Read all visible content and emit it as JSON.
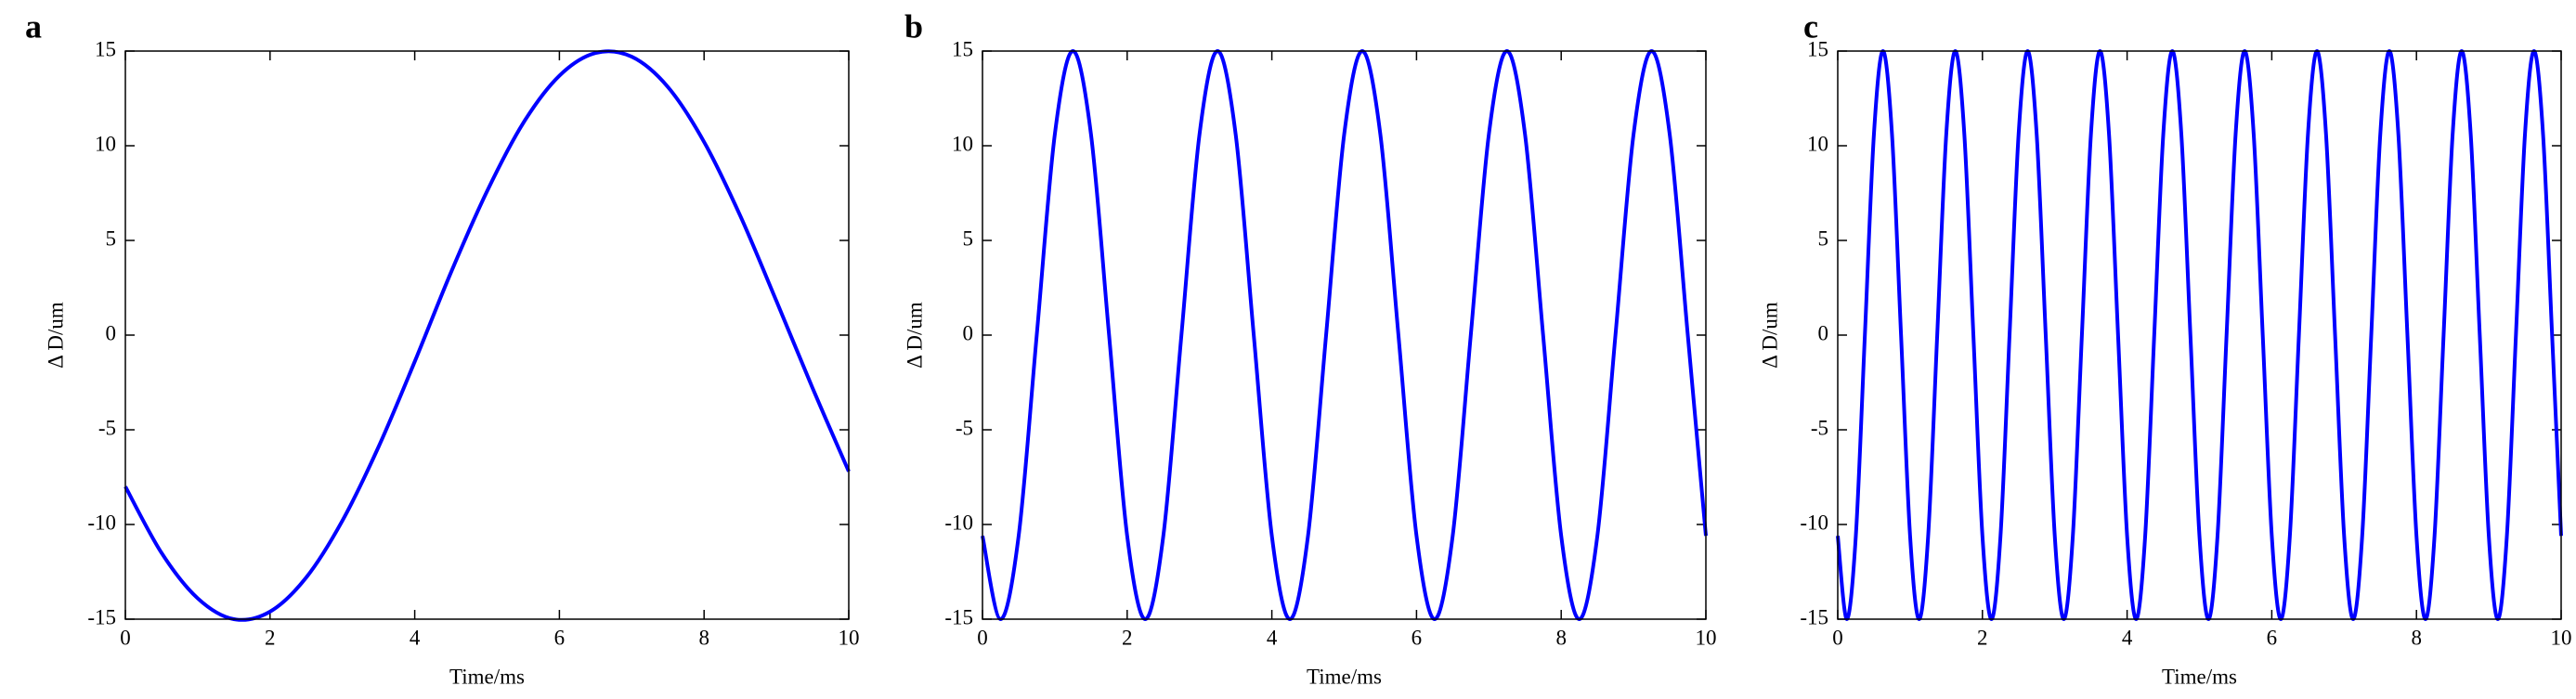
{
  "chart_data": [
    {
      "type": "line",
      "label": "a",
      "xlabel": "Time/ms",
      "ylabel": "Δ D/um",
      "x": [
        0,
        0.5,
        1,
        1.5,
        2,
        2.5,
        3,
        3.5,
        4,
        4.5,
        5,
        5.5,
        6,
        6.5,
        7,
        7.5,
        8,
        8.5,
        9,
        9.5,
        10
      ],
      "series": [
        {
          "color": "#0000ff",
          "values": [
            -8.0,
            -11.5,
            -13.9,
            -15.0,
            -14.6,
            -12.8,
            -9.8,
            -5.9,
            -1.4,
            3.3,
            7.6,
            11.2,
            13.7,
            14.9,
            14.7,
            13.1,
            10.2,
            6.3,
            1.8,
            -2.8,
            -7.2
          ]
        }
      ],
      "xlim": [
        0,
        10
      ],
      "ylim": [
        -15,
        15
      ],
      "xticks": [
        0,
        2,
        4,
        6,
        8,
        10
      ],
      "yticks": [
        -15,
        -10,
        -5,
        0,
        5,
        10,
        15
      ]
    },
    {
      "type": "line",
      "label": "b",
      "xlabel": "Time/ms",
      "ylabel": "Δ D/um",
      "x": [
        0,
        0.25,
        0.5,
        0.75,
        1,
        1.25,
        1.5,
        1.75,
        2,
        2.25,
        2.5,
        2.75,
        3,
        3.25,
        3.5,
        3.75,
        4,
        4.25,
        4.5,
        4.75,
        5,
        5.25,
        5.5,
        5.75,
        6,
        6.25,
        6.5,
        6.75,
        7,
        7.25,
        7.5,
        7.75,
        8,
        8.25,
        8.5,
        8.75,
        9,
        9.25,
        9.5,
        9.75,
        10
      ],
      "series": [
        {
          "color": "#0000ff",
          "values": [
            -10.6,
            -15,
            -10.6,
            0,
            10.6,
            15,
            10.6,
            0,
            -10.6,
            -15,
            -10.6,
            0,
            10.6,
            15,
            10.6,
            0,
            -10.6,
            -15,
            -10.6,
            0,
            10.6,
            15,
            10.6,
            0,
            -10.6,
            -15,
            -10.6,
            0,
            10.6,
            15,
            10.6,
            0,
            -10.6,
            -15,
            -10.6,
            0,
            10.6,
            15,
            10.6,
            0,
            -10.6
          ]
        }
      ],
      "xlim": [
        0,
        10
      ],
      "ylim": [
        -15,
        15
      ],
      "xticks": [
        0,
        2,
        4,
        6,
        8,
        10
      ],
      "yticks": [
        -15,
        -10,
        -5,
        0,
        5,
        10,
        15
      ]
    },
    {
      "type": "line",
      "label": "c",
      "xlabel": "Time/ms",
      "ylabel": "Δ D/um",
      "x": [
        0,
        0.125,
        0.25,
        0.375,
        0.5,
        0.625,
        0.75,
        0.875,
        1,
        1.125,
        1.25,
        1.375,
        1.5,
        1.625,
        1.75,
        1.875,
        2,
        2.125,
        2.25,
        2.375,
        2.5,
        2.625,
        2.75,
        2.875,
        3,
        3.125,
        3.25,
        3.375,
        3.5,
        3.625,
        3.75,
        3.875,
        4,
        4.125,
        4.25,
        4.375,
        4.5,
        4.625,
        4.75,
        4.875,
        5,
        5.125,
        5.25,
        5.375,
        5.5,
        5.625,
        5.75,
        5.875,
        6,
        6.125,
        6.25,
        6.375,
        6.5,
        6.625,
        6.75,
        6.875,
        7,
        7.125,
        7.25,
        7.375,
        7.5,
        7.625,
        7.75,
        7.875,
        8,
        8.125,
        8.25,
        8.375,
        8.5,
        8.625,
        8.75,
        8.875,
        9,
        9.125,
        9.25,
        9.375,
        9.5,
        9.625,
        9.75,
        9.875,
        10
      ],
      "series": [
        {
          "color": "#0000ff",
          "values": [
            -10.6,
            -15,
            -10.6,
            0,
            10.6,
            15,
            10.6,
            0,
            -10.6,
            -15,
            -10.6,
            0,
            10.6,
            15,
            10.6,
            0,
            -10.6,
            -15,
            -10.6,
            0,
            10.6,
            15,
            10.6,
            0,
            -10.6,
            -15,
            -10.6,
            0,
            10.6,
            15,
            10.6,
            0,
            -10.6,
            -15,
            -10.6,
            0,
            10.6,
            15,
            10.6,
            0,
            -10.6,
            -15,
            -10.6,
            0,
            10.6,
            15,
            10.6,
            0,
            -10.6,
            -15,
            -10.6,
            0,
            10.6,
            15,
            10.6,
            0,
            -10.6,
            -15,
            -10.6,
            0,
            10.6,
            15,
            10.6,
            0,
            -10.6,
            -15,
            -10.6,
            0,
            10.6,
            15,
            10.6,
            0,
            -10.6,
            -15,
            -10.6,
            0,
            10.6,
            15,
            10.6,
            0,
            -10.6
          ]
        }
      ],
      "xlim": [
        0,
        10
      ],
      "ylim": [
        -15,
        15
      ],
      "xticks": [
        0,
        2,
        4,
        6,
        8,
        10
      ],
      "yticks": [
        -15,
        -10,
        -5,
        0,
        5,
        10,
        15
      ]
    }
  ]
}
